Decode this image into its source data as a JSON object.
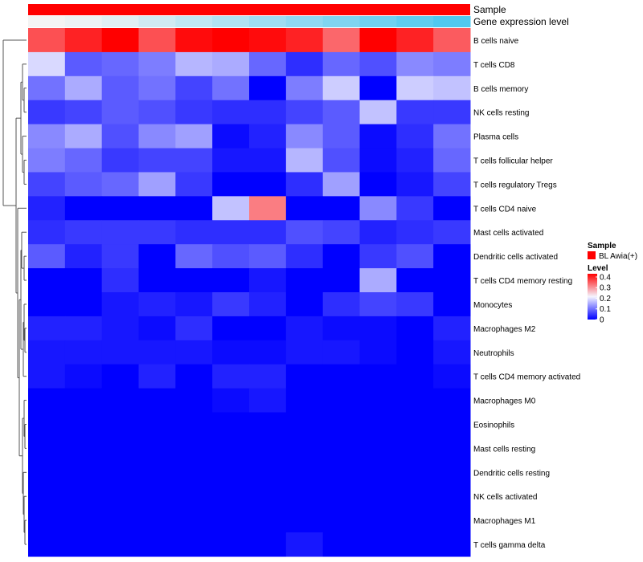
{
  "chart_data": {
    "type": "heatmap",
    "annotations": [
      {
        "label": "Sample",
        "kind": "sample"
      },
      {
        "label": "Gene expression level",
        "kind": "gradient"
      }
    ],
    "rows": [
      "B cells naive",
      "T cells CD8",
      "B cells memory",
      "NK cells resting",
      "Plasma cells",
      "T cells follicular helper",
      "T cells regulatory  Tregs",
      "T cells CD4 naive",
      "Mast cells activated",
      "Dendritic cells activated",
      "T cells CD4 memory resting",
      "Monocytes",
      "Macrophages M2",
      "Neutrophils",
      "T cells CD4 memory activated",
      "Macrophages M0",
      "Eosinophils",
      "Mast cells resting",
      "Dendritic cells resting",
      "NK cells activated",
      "Macrophages M1",
      "T cells gamma delta"
    ],
    "columns_count": 12,
    "values": [
      [
        0.36,
        0.4,
        0.43,
        0.36,
        0.42,
        0.43,
        0.42,
        0.4,
        0.34,
        0.43,
        0.4,
        0.35
      ],
      [
        0.19,
        0.08,
        0.09,
        0.11,
        0.16,
        0.15,
        0.09,
        0.04,
        0.09,
        0.07,
        0.12,
        0.11
      ],
      [
        0.1,
        0.15,
        0.08,
        0.1,
        0.06,
        0.1,
        0.0,
        0.11,
        0.18,
        0.0,
        0.18,
        0.17
      ],
      [
        0.05,
        0.06,
        0.08,
        0.07,
        0.05,
        0.04,
        0.04,
        0.06,
        0.08,
        0.17,
        0.05,
        0.05
      ],
      [
        0.12,
        0.15,
        0.07,
        0.12,
        0.14,
        0.01,
        0.03,
        0.12,
        0.08,
        0.01,
        0.04,
        0.1
      ],
      [
        0.11,
        0.09,
        0.05,
        0.06,
        0.06,
        0.02,
        0.02,
        0.16,
        0.07,
        0.01,
        0.03,
        0.09
      ],
      [
        0.06,
        0.08,
        0.09,
        0.14,
        0.05,
        0.0,
        0.0,
        0.04,
        0.14,
        0.0,
        0.02,
        0.06
      ],
      [
        0.03,
        0.0,
        0.0,
        0.0,
        0.0,
        0.17,
        0.32,
        0.0,
        0.0,
        0.12,
        0.05,
        0.0
      ],
      [
        0.04,
        0.05,
        0.05,
        0.05,
        0.04,
        0.04,
        0.04,
        0.07,
        0.06,
        0.03,
        0.04,
        0.05
      ],
      [
        0.08,
        0.03,
        0.05,
        0.0,
        0.09,
        0.07,
        0.08,
        0.04,
        0.0,
        0.05,
        0.07,
        0.0
      ],
      [
        0.0,
        0.0,
        0.04,
        0.0,
        0.0,
        0.0,
        0.02,
        0.0,
        0.0,
        0.15,
        0.0,
        0.0
      ],
      [
        0.0,
        0.0,
        0.02,
        0.03,
        0.02,
        0.05,
        0.03,
        0.0,
        0.04,
        0.06,
        0.05,
        0.0
      ],
      [
        0.03,
        0.03,
        0.02,
        0.01,
        0.04,
        0.0,
        0.0,
        0.02,
        0.01,
        0.01,
        0.0,
        0.03
      ],
      [
        0.02,
        0.02,
        0.02,
        0.02,
        0.02,
        0.01,
        0.01,
        0.02,
        0.02,
        0.01,
        0.0,
        0.02
      ],
      [
        0.02,
        0.01,
        0.0,
        0.03,
        0.0,
        0.03,
        0.03,
        0.0,
        0.0,
        0.0,
        0.0,
        0.01
      ],
      [
        0.0,
        0.0,
        0.0,
        0.0,
        0.0,
        0.01,
        0.02,
        0.0,
        0.0,
        0.0,
        0.0,
        0.0
      ],
      [
        0.0,
        0.0,
        0.0,
        0.0,
        0.0,
        0.0,
        0.0,
        0.0,
        0.0,
        0.0,
        0.0,
        0.0
      ],
      [
        0.0,
        0.0,
        0.0,
        0.0,
        0.0,
        0.0,
        0.0,
        0.0,
        0.0,
        0.0,
        0.0,
        0.0
      ],
      [
        0.0,
        0.0,
        0.0,
        0.0,
        0.0,
        0.0,
        0.0,
        0.0,
        0.0,
        0.0,
        0.0,
        0.0
      ],
      [
        0.0,
        0.0,
        0.0,
        0.0,
        0.0,
        0.0,
        0.0,
        0.0,
        0.0,
        0.0,
        0.0,
        0.0
      ],
      [
        0.0,
        0.0,
        0.0,
        0.0,
        0.0,
        0.0,
        0.0,
        0.0,
        0.0,
        0.0,
        0.0,
        0.0
      ],
      [
        0.0,
        0.0,
        0.0,
        0.0,
        0.0,
        0.0,
        0.0,
        0.02,
        0.0,
        0.0,
        0.0,
        0.0
      ]
    ],
    "gene_expression_level": [
      0.05,
      0.07,
      0.1,
      0.14,
      0.18,
      0.22,
      0.26,
      0.3,
      0.34,
      0.38,
      0.42,
      0.46
    ],
    "scale": {
      "min": 0,
      "max": 0.43,
      "ticks": [
        0,
        0.1,
        0.2,
        0.3,
        0.4
      ],
      "colors": {
        "low": "#0000ff",
        "mid": "#f5f5ff",
        "high": "#ff0000"
      }
    },
    "sample_color": "#ff0000",
    "gene_expression_colors": {
      "low": "#f4f4f4",
      "high": "#4fc8f0"
    },
    "legend": {
      "sample_title": "Sample",
      "sample_item": "BL Awia(+)",
      "level_title": "Level",
      "level_ticks": [
        "0.4",
        "0.3",
        "0.2",
        "0.1",
        "0"
      ]
    },
    "dendrogram": "left",
    "legend_position": "right"
  }
}
